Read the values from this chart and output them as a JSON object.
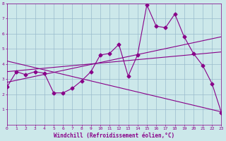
{
  "xlabel": "Windchill (Refroidissement éolien,°C)",
  "ylabel": "",
  "background_color": "#cce8ea",
  "line_color": "#880088",
  "grid_color": "#99bbcc",
  "xmin": 0,
  "xmax": 23,
  "ymin": 0,
  "ymax": 8,
  "yticks": [
    1,
    2,
    3,
    4,
    5,
    6,
    7,
    8
  ],
  "xticks": [
    0,
    1,
    2,
    3,
    4,
    5,
    6,
    7,
    8,
    9,
    10,
    11,
    12,
    13,
    14,
    15,
    16,
    17,
    18,
    19,
    20,
    21,
    22,
    23
  ],
  "line1_x": [
    0,
    1,
    2,
    3,
    4,
    5,
    6,
    7,
    8,
    9,
    10,
    11,
    12,
    13,
    14,
    15,
    16,
    17,
    18,
    19,
    20,
    21,
    22,
    23
  ],
  "line1_y": [
    2.5,
    3.5,
    3.3,
    3.5,
    3.4,
    2.1,
    2.1,
    2.4,
    2.9,
    3.5,
    4.6,
    4.7,
    5.3,
    3.2,
    4.6,
    7.9,
    6.5,
    6.4,
    7.3,
    5.8,
    4.7,
    3.9,
    2.7,
    0.8
  ],
  "line2_x": [
    0,
    23
  ],
  "line2_y": [
    2.8,
    5.8
  ],
  "line3_x": [
    0,
    23
  ],
  "line3_y": [
    3.5,
    4.8
  ],
  "line4_x": [
    0,
    23
  ],
  "line4_y": [
    4.2,
    0.85
  ],
  "marker": "D",
  "markersize": 2.5,
  "linewidth": 0.8,
  "tick_fontsize": 4.5,
  "xlabel_fontsize": 5.5
}
